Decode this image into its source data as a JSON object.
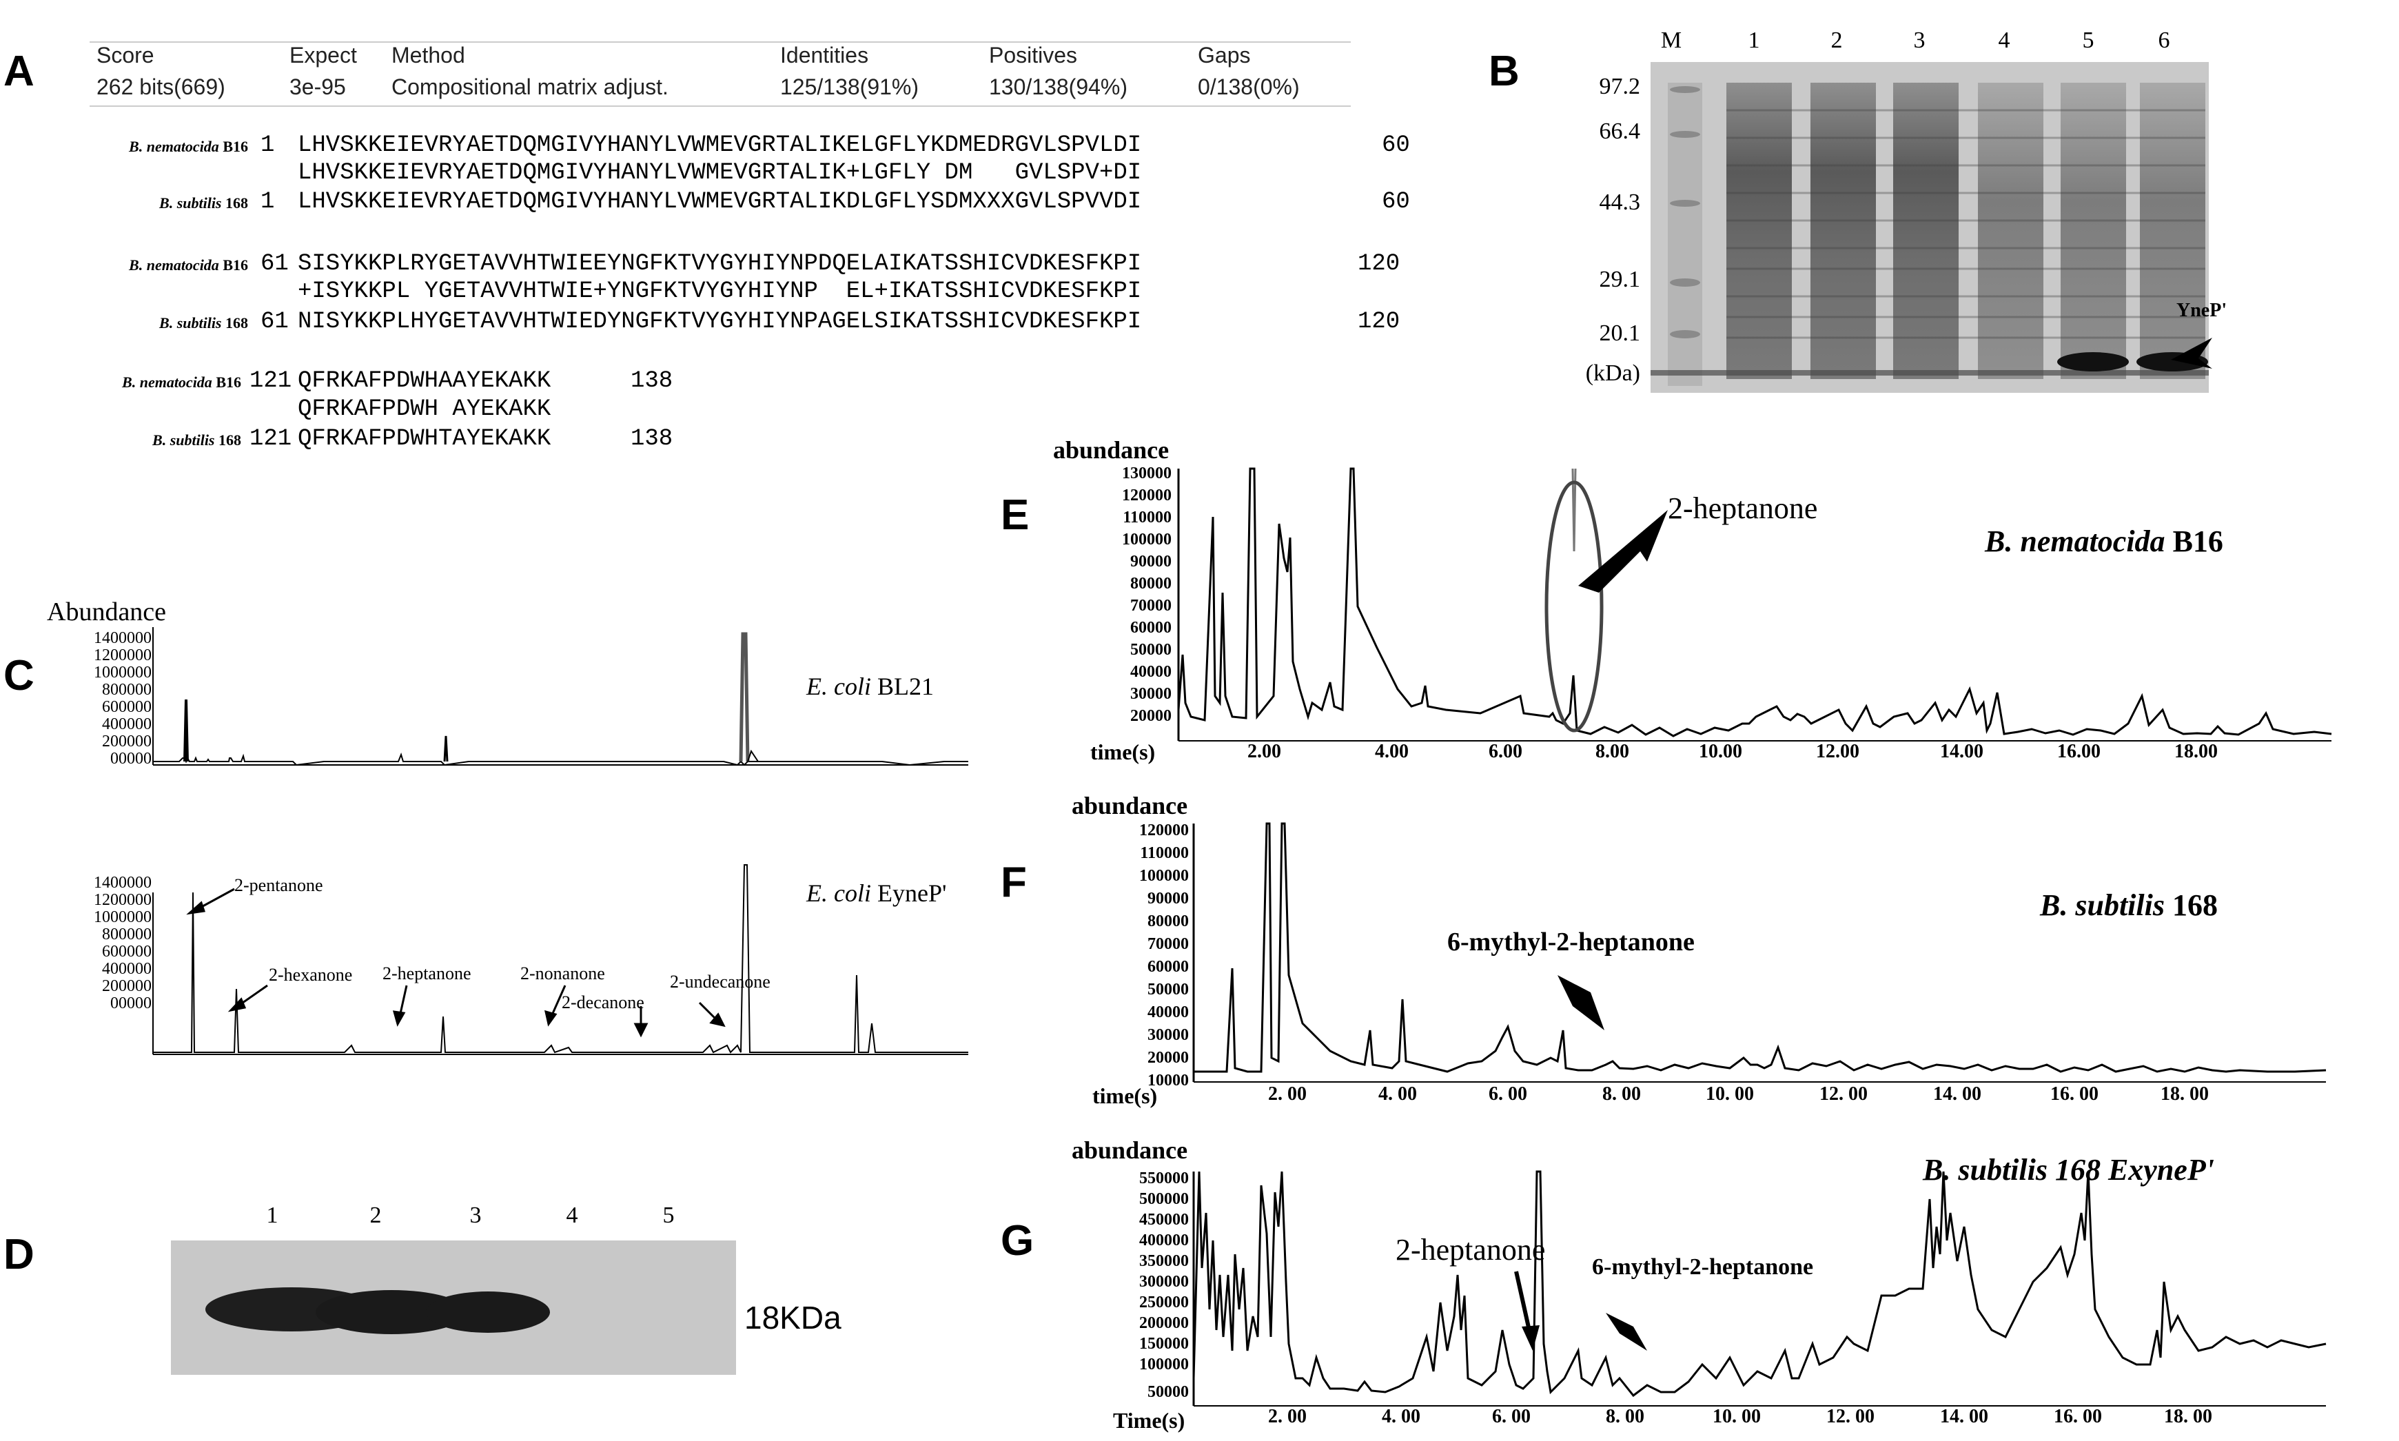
{
  "panels": [
    "A",
    "B",
    "C",
    "D",
    "E",
    "F",
    "G"
  ],
  "panel_a": {
    "headers": [
      "Score",
      "Expect",
      "Method",
      "Identities",
      "Positives",
      "Gaps"
    ],
    "values": [
      "262 bits(669)",
      "3e-95",
      "Compositional matrix adjust.",
      "125/138(91%)",
      "130/138(94%)",
      "0/138(0%)"
    ],
    "blocks": [
      {
        "query_species": "B. nematocida",
        "query_strain": "B16",
        "query_start": "1",
        "query_end": "60",
        "query_seq": "LHVSKKEIEVRYAETDQMGIVYHANYLVWMEVGRTALIKELGFLYKDMEDRGVLSPVLDI",
        "match": "LHVSKKEIEVRYAETDQMGIVYHANYLVWMEVGRTALIK+LGFLY DM   GVLSPV+DI",
        "subject_species": "B. subtilis",
        "subject_strain": "168",
        "subject_start": "1",
        "subject_end": "60",
        "subject_seq": "LHVSKKEIEVRYAETDQMGIVYHANYLVWMEVGRTALIKDLGFLYSDMXXXGVLSPVVDI"
      },
      {
        "query_species": "B. nematocida",
        "query_strain": "B16",
        "query_start": "61",
        "query_end": "120",
        "query_seq": "SISYKKPLRYGETAVVHTWIEEYNGFKTVYGYHIYNPDQELAIKATSSHICVDKESFKPI",
        "match": "+ISYKKPL YGETAVVHTWIE+YNGFKTVYGYHIYNP  EL+IKATSSHICVDKESFKPI",
        "subject_species": "B. subtilis",
        "subject_strain": "168",
        "subject_start": "61",
        "subject_end": "120",
        "subject_seq": "NISYKKPLHYGETAVVHTWIEDYNGFKTVYGYHIYNPAGELSIKATSSHICVDKESFKPI"
      },
      {
        "query_species": "B. nematocida",
        "query_strain": "B16",
        "query_start": "121",
        "query_end": "138",
        "query_seq": "QFRKAFPDWHAAYEKAKK",
        "match": "QFRKAFPDWH AYEKAKK",
        "subject_species": "B. subtilis",
        "subject_strain": "168",
        "subject_start": "121",
        "subject_end": "138",
        "subject_seq": "QFRKAFPDWHTAYEKAKK"
      }
    ]
  },
  "panel_b": {
    "lanes": [
      "M",
      "1",
      "2",
      "3",
      "4",
      "5",
      "6"
    ],
    "markers": [
      "97.2",
      "66.4",
      "44.3",
      "29.1",
      "20.1",
      "(kDa)"
    ],
    "band_label": "YneP'"
  },
  "panel_c": {
    "ylabel": "Abundance",
    "top_title_species": "E. coli",
    "top_title_strain": "BL21",
    "bottom_title_species": "E. coli",
    "bottom_title_strain": "EyneP'",
    "yticks": [
      "1400000",
      "1200000",
      "1000000",
      "800000",
      "600000",
      "400000",
      "200000",
      "00000"
    ],
    "peak_labels": [
      "2-pentanone",
      "2-hexanone",
      "2-heptanone",
      "2-nonanone",
      "2-decanone",
      "2-undecanone"
    ]
  },
  "panel_d": {
    "lanes": [
      "1",
      "2",
      "3",
      "4",
      "5"
    ],
    "size_label": "18KDa"
  },
  "panel_e": {
    "ylabel": "abundance",
    "xlabel": "time(s)",
    "title_species": "B. nematocida",
    "title_strain": "B16",
    "annotation": "2-heptanone",
    "yticks": [
      "130000",
      "120000",
      "110000",
      "100000",
      "90000",
      "80000",
      "70000",
      "60000",
      "50000",
      "40000",
      "30000",
      "20000"
    ],
    "xticks": [
      "2.00",
      "4.00",
      "6.00",
      "8.00",
      "10.00",
      "12.00",
      "14.00",
      "16.00",
      "18.00"
    ]
  },
  "panel_f": {
    "ylabel": "abundance",
    "xlabel": "time(s)",
    "title_species": "B. subtilis",
    "title_strain": "168",
    "annotation": "6-mythyl-2-heptanone",
    "yticks": [
      "120000",
      "110000",
      "100000",
      "90000",
      "80000",
      "70000",
      "60000",
      "50000",
      "40000",
      "30000",
      "20000",
      "10000"
    ],
    "xticks": [
      "2. 00",
      "4. 00",
      "6. 00",
      "8. 00",
      "10. 00",
      "12. 00",
      "14. 00",
      "16. 00",
      "18. 00"
    ]
  },
  "panel_g": {
    "ylabel": "abundance",
    "xlabel": "Time(s)",
    "title": "B. subtilis 168 ExyneP'",
    "annotation_1": "2-heptanone",
    "annotation_2": "6-mythyl-2-heptanone",
    "yticks": [
      "550000",
      "500000",
      "450000",
      "400000",
      "350000",
      "300000",
      "250000",
      "200000",
      "150000",
      "100000",
      "50000"
    ],
    "xticks": [
      "2. 00",
      "4. 00",
      "6. 00",
      "8. 00",
      "10. 00",
      "12. 00",
      "14. 00",
      "16. 00",
      "18. 00"
    ]
  }
}
